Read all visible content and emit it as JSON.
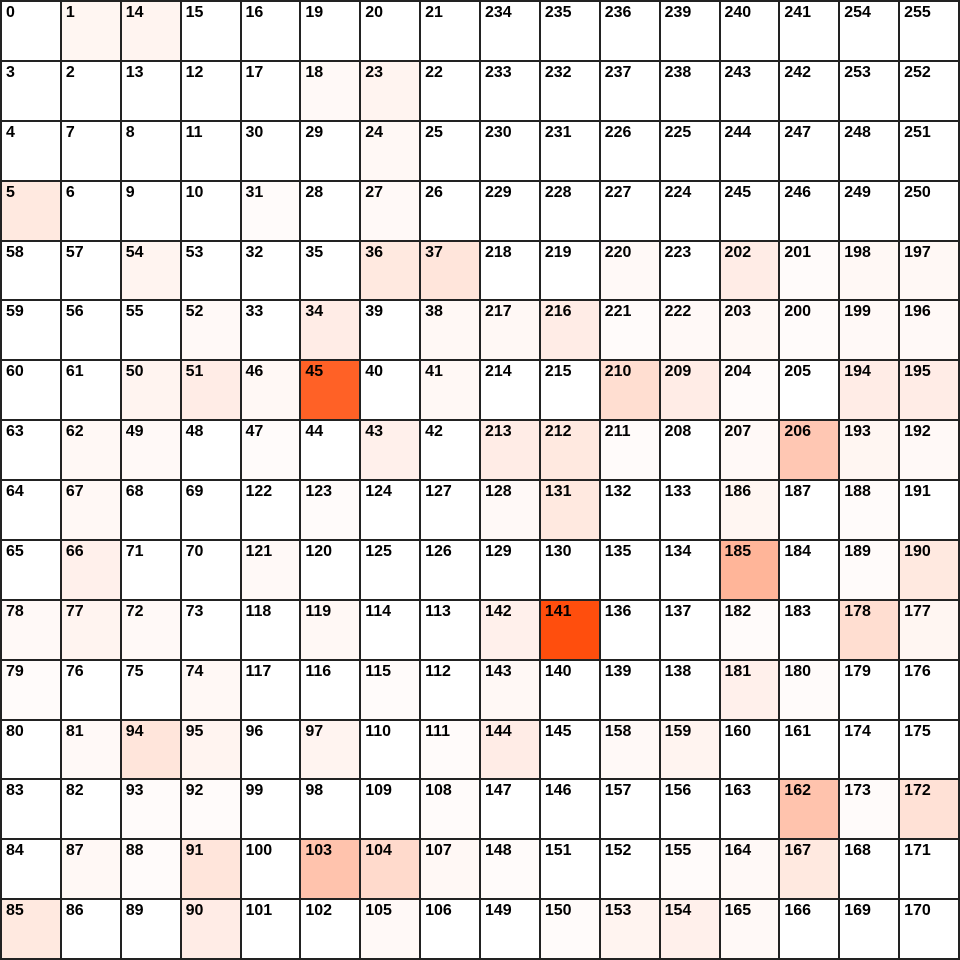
{
  "grid": {
    "rows": [
      [
        0,
        1,
        14,
        15,
        16,
        19,
        20,
        21,
        234,
        235,
        236,
        239,
        240,
        241,
        254,
        255
      ],
      [
        3,
        2,
        13,
        12,
        17,
        18,
        23,
        22,
        233,
        232,
        237,
        238,
        243,
        242,
        253,
        252
      ],
      [
        4,
        7,
        8,
        11,
        30,
        29,
        24,
        25,
        230,
        231,
        226,
        225,
        244,
        247,
        248,
        251
      ],
      [
        5,
        6,
        9,
        10,
        31,
        28,
        27,
        26,
        229,
        228,
        227,
        224,
        245,
        246,
        249,
        250
      ],
      [
        58,
        57,
        54,
        53,
        32,
        35,
        36,
        37,
        218,
        219,
        220,
        223,
        202,
        201,
        198,
        197
      ],
      [
        59,
        56,
        55,
        52,
        33,
        34,
        39,
        38,
        217,
        216,
        221,
        222,
        203,
        200,
        199,
        196
      ],
      [
        60,
        61,
        50,
        51,
        46,
        45,
        40,
        41,
        214,
        215,
        210,
        209,
        204,
        205,
        194,
        195
      ],
      [
        63,
        62,
        49,
        48,
        47,
        44,
        43,
        42,
        213,
        212,
        211,
        208,
        207,
        206,
        193,
        192
      ],
      [
        64,
        67,
        68,
        69,
        122,
        123,
        124,
        127,
        128,
        131,
        132,
        133,
        186,
        187,
        188,
        191
      ],
      [
        65,
        66,
        71,
        70,
        121,
        120,
        125,
        126,
        129,
        130,
        135,
        134,
        185,
        184,
        189,
        190
      ],
      [
        78,
        77,
        72,
        73,
        118,
        119,
        114,
        113,
        142,
        141,
        136,
        137,
        182,
        183,
        178,
        177
      ],
      [
        79,
        76,
        75,
        74,
        117,
        116,
        115,
        112,
        143,
        140,
        139,
        138,
        181,
        180,
        179,
        176
      ],
      [
        80,
        81,
        94,
        95,
        96,
        97,
        110,
        111,
        144,
        145,
        158,
        159,
        160,
        161,
        174,
        175
      ],
      [
        83,
        82,
        93,
        92,
        99,
        98,
        109,
        108,
        147,
        146,
        157,
        156,
        163,
        162,
        173,
        172
      ],
      [
        84,
        87,
        88,
        91,
        100,
        103,
        104,
        107,
        148,
        151,
        152,
        155,
        164,
        167,
        168,
        171
      ],
      [
        85,
        86,
        89,
        90,
        101,
        102,
        105,
        106,
        149,
        150,
        153,
        154,
        165,
        166,
        169,
        170
      ]
    ],
    "intensity": [
      [
        0,
        0.05,
        0.06,
        0,
        0,
        0,
        0,
        0,
        0,
        0,
        0,
        0,
        0,
        0,
        0,
        0
      ],
      [
        0,
        0,
        0,
        0,
        0,
        0.03,
        0.06,
        0,
        0,
        0,
        0,
        0,
        0,
        0,
        0,
        0
      ],
      [
        0,
        0,
        0,
        0,
        0,
        0,
        0.04,
        0,
        0,
        0,
        0,
        0,
        0,
        0,
        0,
        0
      ],
      [
        0.12,
        0,
        0,
        0,
        0.02,
        0,
        0.03,
        0,
        0,
        0,
        0,
        0,
        0,
        0,
        0,
        0
      ],
      [
        0,
        0,
        0.06,
        0,
        0,
        0,
        0.12,
        0.14,
        0,
        0,
        0.03,
        0,
        0.1,
        0.02,
        0.04,
        0.04
      ],
      [
        0,
        0,
        0,
        0.03,
        0,
        0.1,
        0,
        0.04,
        0.04,
        0.1,
        0.02,
        0.03,
        0.04,
        0.02,
        0.03,
        0.03
      ],
      [
        0,
        0,
        0.06,
        0.1,
        0.04,
        0.85,
        0,
        0.04,
        0,
        0,
        0.18,
        0.1,
        0.02,
        0,
        0.1,
        0.1
      ],
      [
        0,
        0.04,
        0.03,
        0,
        0.02,
        0,
        0.08,
        0,
        0.1,
        0.12,
        0.02,
        0,
        0.03,
        0.3,
        0.05,
        0.03
      ],
      [
        0,
        0.04,
        0,
        0,
        0,
        0.02,
        0,
        0,
        0.03,
        0.12,
        0,
        0,
        0.05,
        0,
        0.02,
        0
      ],
      [
        0,
        0.08,
        0,
        0,
        0.03,
        0,
        0,
        0,
        0,
        0,
        0,
        0,
        0.4,
        0,
        0.02,
        0.12
      ],
      [
        0.03,
        0.06,
        0.03,
        0,
        0,
        0.04,
        0,
        0,
        0.08,
        0.95,
        0,
        0,
        0.02,
        0,
        0.18,
        0.05
      ],
      [
        0.02,
        0,
        0,
        0.04,
        0,
        0,
        0.02,
        0,
        0.04,
        0,
        0,
        0,
        0.08,
        0.02,
        0,
        0
      ],
      [
        0,
        0.03,
        0.14,
        0.06,
        0,
        0.06,
        0,
        0.02,
        0.1,
        0,
        0.03,
        0.06,
        0,
        0,
        0,
        0
      ],
      [
        0,
        0,
        0.02,
        0.02,
        0,
        0,
        0,
        0.02,
        0,
        0,
        0,
        0,
        0,
        0.32,
        0.02,
        0.16
      ],
      [
        0,
        0.04,
        0.02,
        0.14,
        0,
        0.32,
        0.2,
        0.04,
        0.02,
        0,
        0,
        0.02,
        0.03,
        0.12,
        0,
        0
      ],
      [
        0.12,
        0,
        0,
        0.1,
        0,
        0,
        0.03,
        0,
        0,
        0.02,
        0.06,
        0.08,
        0.03,
        0,
        0,
        0
      ]
    ],
    "heat_color": "#ff4500"
  }
}
